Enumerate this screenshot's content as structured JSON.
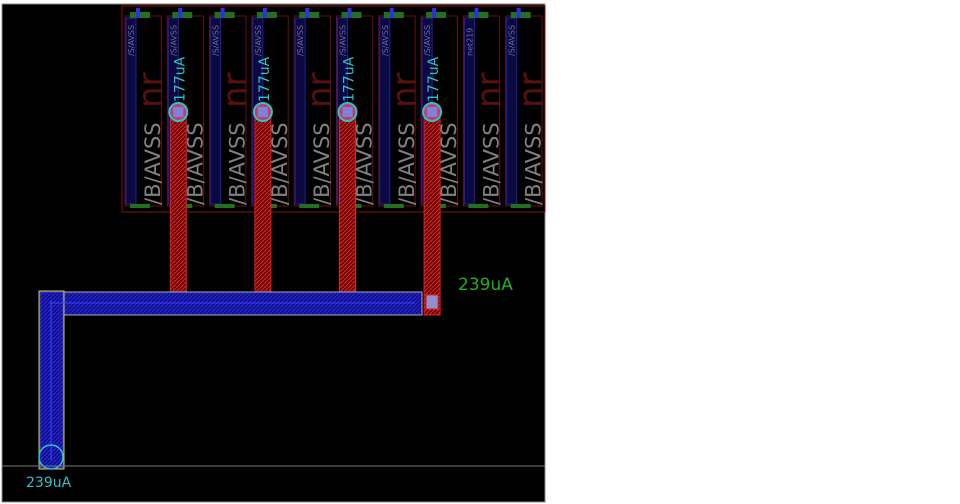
{
  "layout_view": {
    "background": "#000000",
    "colors": {
      "metal_red": "#d01818",
      "metal_blue": "#1a1ad8",
      "outline_yellow": "#d8d020",
      "via_cyan": "#30c0c8",
      "label_gray": "#7a7a7a",
      "label_green": "#20b020",
      "device_green": "#207020"
    },
    "device_columns": [
      {
        "net_label": "/B/AVSS",
        "pin_label": "/S/AVSS",
        "current": "177uA"
      },
      {
        "net_label": "/B/AVSS",
        "pin_label": "/S/AVSS",
        "current": ""
      },
      {
        "net_label": "/B/AVSS",
        "pin_label": "/S/AVSS",
        "current": "177uA"
      },
      {
        "net_label": "/B/AVSS",
        "pin_label": "/S/AVSS",
        "current": ""
      },
      {
        "net_label": "/B/AVSS",
        "pin_label": "/S/AVSS",
        "current": "177uA"
      },
      {
        "net_label": "/B/AVSS",
        "pin_label": "/S/AVSS",
        "current": ""
      },
      {
        "net_label": "/B/AVSS",
        "pin_label": "/S/AVSS",
        "current": "177uA"
      },
      {
        "net_label": "/B/AVSS",
        "pin_label": "/S/AVSS",
        "current": ""
      },
      {
        "net_label": "/B/AVSS",
        "pin_label": "net219",
        "current": ""
      },
      {
        "net_label": "/B/AVSS",
        "pin_label": "/S/AVSS",
        "current": ""
      }
    ],
    "device_prefix": "nr",
    "bus_current_label": "239uA",
    "pin_current_label": "239uA"
  }
}
